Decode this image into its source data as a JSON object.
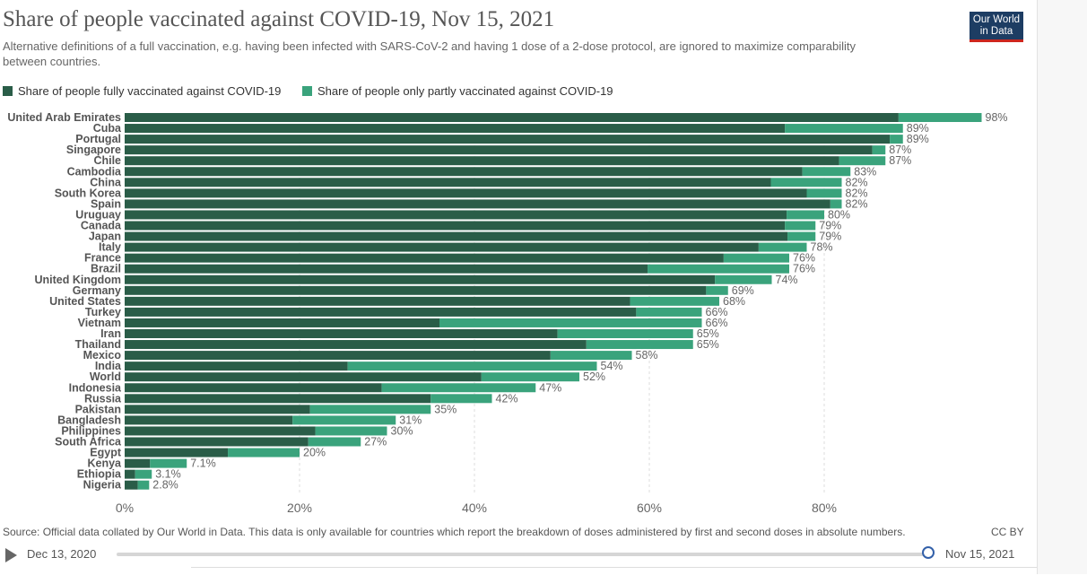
{
  "header": {
    "title": "Share of people vaccinated against COVID-19, Nov 15, 2021",
    "subtitle": "Alternative definitions of a full vaccination, e.g. having been infected with SARS-CoV-2 and having 1 dose of a 2-dose protocol, are ignored to maximize comparability between countries.",
    "logo_line1": "Our World",
    "logo_line2": "in Data"
  },
  "colors": {
    "full": "#2a5d48",
    "partial": "#3aa37c",
    "grid": "#dddddd",
    "logo_bg": "#1d3d63",
    "logo_accent": "#ce261e"
  },
  "legend": {
    "full": "Share of people fully vaccinated against COVID-19",
    "partial": "Share of people only partly vaccinated against COVID-19"
  },
  "chart_data": {
    "type": "bar",
    "orientation": "horizontal",
    "stacked": true,
    "categories": [
      "United Arab Emirates",
      "Cuba",
      "Portugal",
      "Singapore",
      "Chile",
      "Cambodia",
      "China",
      "South Korea",
      "Spain",
      "Uruguay",
      "Canada",
      "Japan",
      "Italy",
      "France",
      "Brazil",
      "United Kingdom",
      "Germany",
      "United States",
      "Turkey",
      "Vietnam",
      "Iran",
      "Thailand",
      "Mexico",
      "India",
      "World",
      "Indonesia",
      "Russia",
      "Pakistan",
      "Bangladesh",
      "Philippines",
      "South Africa",
      "Egypt",
      "Kenya",
      "Ethiopia",
      "Nigeria"
    ],
    "series": [
      {
        "name": "Share of people fully vaccinated against COVID-19",
        "values": [
          88.5,
          75.5,
          87.5,
          85.5,
          81.7,
          77.5,
          73.9,
          78.0,
          80.7,
          75.7,
          75.5,
          75.8,
          72.5,
          68.5,
          59.8,
          67.5,
          66.5,
          57.8,
          58.5,
          36.0,
          49.5,
          52.8,
          48.7,
          25.5,
          40.8,
          29.4,
          35.0,
          21.2,
          19.2,
          21.8,
          21.0,
          11.8,
          2.9,
          1.2,
          1.5
        ]
      },
      {
        "name": "Share of people only partly vaccinated against COVID-19",
        "values": [
          9.5,
          13.5,
          1.5,
          1.5,
          5.3,
          5.5,
          8.1,
          4.0,
          1.3,
          4.3,
          3.5,
          3.2,
          5.5,
          7.5,
          16.2,
          6.5,
          2.5,
          10.2,
          7.5,
          30.0,
          15.5,
          12.2,
          9.3,
          28.5,
          11.2,
          17.6,
          7.0,
          13.8,
          11.8,
          8.2,
          6.0,
          8.2,
          4.2,
          1.9,
          1.3
        ]
      }
    ],
    "data_labels": [
      "98%",
      "89%",
      "89%",
      "87%",
      "87%",
      "83%",
      "82%",
      "82%",
      "82%",
      "80%",
      "79%",
      "79%",
      "78%",
      "76%",
      "76%",
      "74%",
      "69%",
      "68%",
      "66%",
      "66%",
      "65%",
      "65%",
      "58%",
      "54%",
      "52%",
      "47%",
      "42%",
      "35%",
      "31%",
      "30%",
      "27%",
      "20%",
      "7.1%",
      "3.1%",
      "2.8%"
    ],
    "xlim": [
      0,
      100
    ],
    "x_ticks": [
      0,
      20,
      40,
      60,
      80
    ],
    "x_tick_labels": [
      "0%",
      "20%",
      "40%",
      "60%",
      "80%"
    ],
    "grid": true,
    "legend_position": "top-left"
  },
  "footer": {
    "source": "Source: Official data collated by Our World in Data. This data is only available for countries which report the breakdown of doses administered by first and second doses in absolute numbers.",
    "license": "CC BY"
  },
  "timeline": {
    "start_date": "Dec 13, 2020",
    "end_date": "Nov 15, 2021",
    "position": 1.0
  }
}
